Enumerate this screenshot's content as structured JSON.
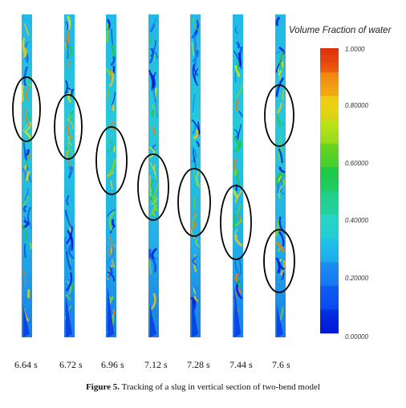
{
  "legend": {
    "title": "Volume Fraction of water",
    "ticks": [
      "1.0000",
      "0.80000",
      "0.60000",
      "0.40000",
      "0.20000",
      "0.00000"
    ],
    "colorscale": [
      "#0018d8",
      "#0a4df0",
      "#1a86f2",
      "#20c0ea",
      "#28d6c0",
      "#1ecf7c",
      "#22c83a",
      "#7fd81c",
      "#d6e418",
      "#f6c414",
      "#f07a10",
      "#e02c0c"
    ]
  },
  "times": [
    "6.64 s",
    "6.72 s",
    "6.96 s",
    "7.12 s",
    "7.28 s",
    "7.44 s",
    "7.6 s"
  ],
  "caption": {
    "label": "Figure 5.",
    "text": " Tracking of a slug in vertical section of two-bend model"
  }
}
